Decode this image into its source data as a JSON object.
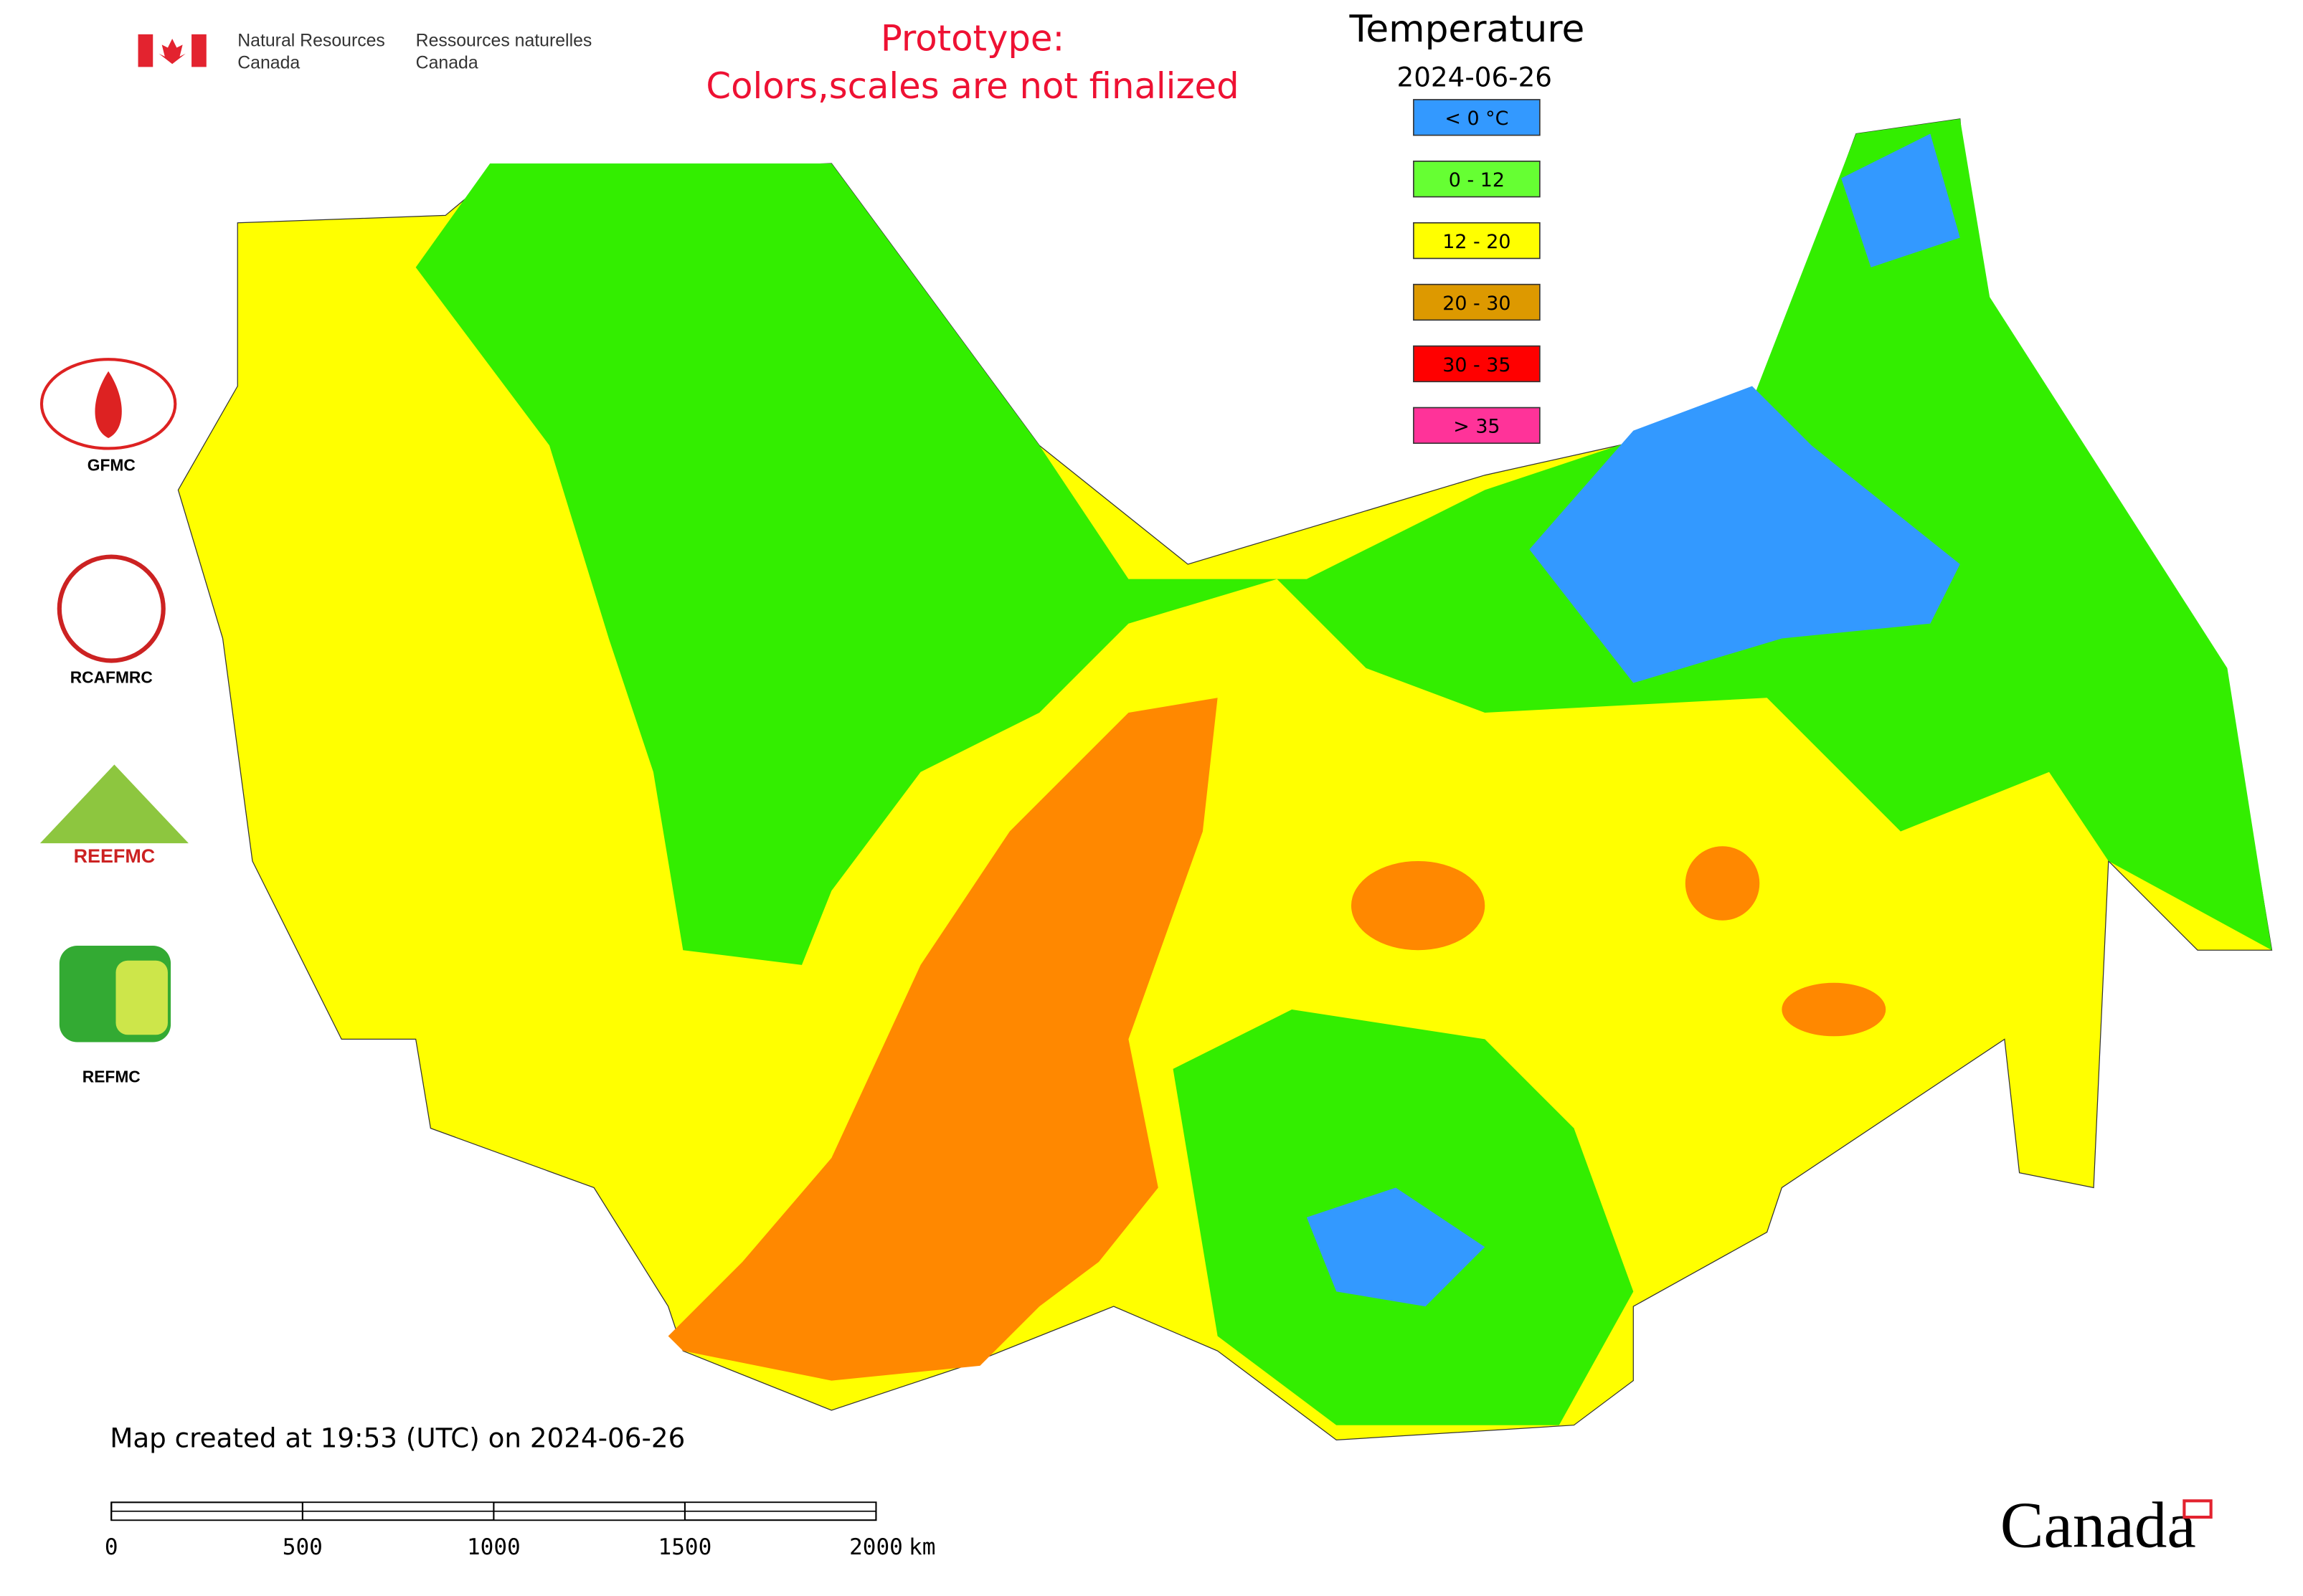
{
  "header": {
    "agency_en": [
      "Natural Resources",
      "Canada"
    ],
    "agency_fr": [
      "Ressources naturelles",
      "Canada"
    ]
  },
  "notice": [
    "Prototype:",
    "Colors,scales are not finalized"
  ],
  "legend": {
    "title": "Temperature",
    "date": "2024-06-26",
    "items": [
      {
        "label": "< 0 °C",
        "color": "#3399ff"
      },
      {
        "label": "0 - 12",
        "color": "#66ff33"
      },
      {
        "label": "12 - 20",
        "color": "#ffff00"
      },
      {
        "label": "20 - 30",
        "color": "#dd9900"
      },
      {
        "label": "30 - 35",
        "color": "#ff0000"
      },
      {
        "label": "> 35",
        "color": "#ff3399"
      }
    ]
  },
  "logos": [
    "GFMC",
    "RCAFMRC",
    "REEFMC",
    "REFMC"
  ],
  "footer": {
    "created": "Map created at 19:53 (UTC) on 2024-06-26",
    "wordmark": "Canada"
  },
  "scale_bar": {
    "ticks": [
      0,
      500,
      1000,
      1500,
      2000
    ],
    "unit": "km"
  }
}
